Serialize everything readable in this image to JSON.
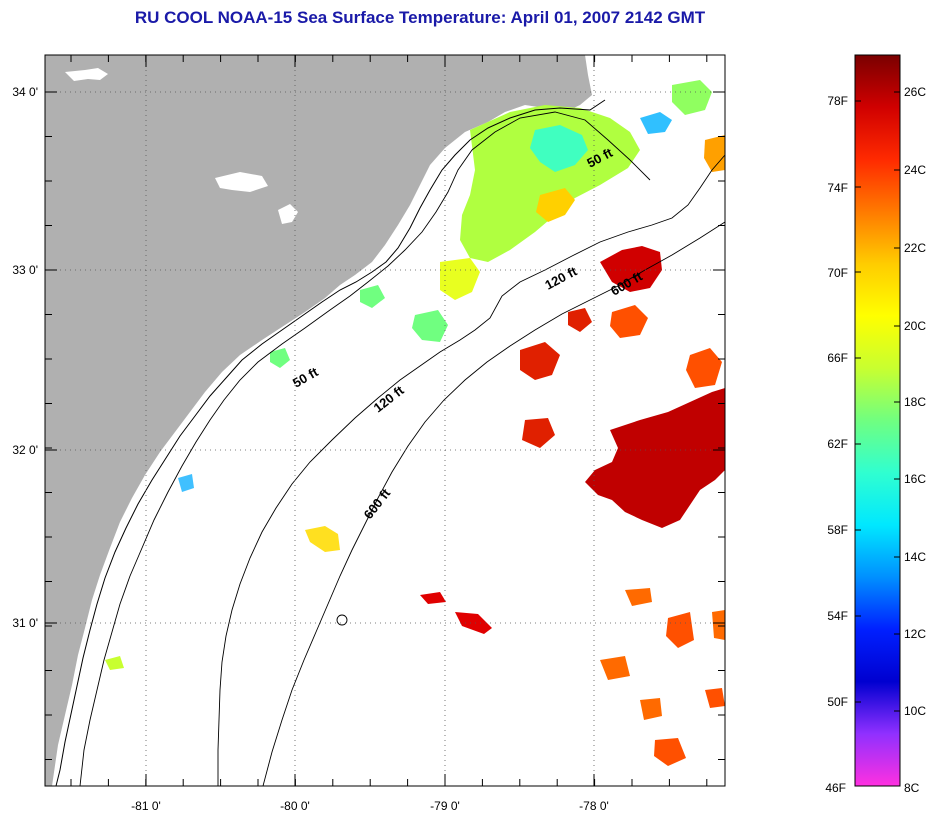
{
  "title": "RU COOL  NOAA-15  Sea Surface Temperature:  April 01, 2007 2142 GMT",
  "map": {
    "lon_labels": [
      "-81 0'",
      "-80 0'",
      "-79 0'",
      "-78 0'"
    ],
    "lat_labels": [
      "34 0'",
      "33 0'",
      "32 0'",
      "31 0'"
    ],
    "contour_labels": {
      "c50_north": "50 ft",
      "c50_south": "50 ft",
      "c120_north": "120 ft",
      "c120_south": "120 ft",
      "c600_north": "600 ft",
      "c600_south": "600 ft"
    },
    "colors": {
      "land": "#b0b0b0",
      "ocean_no_data": "#ffffff",
      "gridline": "#555555"
    }
  },
  "colorbar": {
    "fahrenheit_labels": [
      "78F",
      "74F",
      "70F",
      "66F",
      "62F",
      "58F",
      "54F",
      "50F",
      "46F"
    ],
    "celsius_labels": [
      "26C",
      "24C",
      "22C",
      "20C",
      "18C",
      "16C",
      "14C",
      "12C",
      "10C",
      "8C"
    ],
    "colors_top_to_bottom": [
      "#7a0000",
      "#d00000",
      "#ff2a00",
      "#ff7a00",
      "#ffcc00",
      "#ffff00",
      "#c8ff30",
      "#70ff80",
      "#30ffd0",
      "#00e8ff",
      "#0090ff",
      "#0020ff",
      "#0000d0",
      "#9030ff",
      "#ff30e0"
    ]
  }
}
